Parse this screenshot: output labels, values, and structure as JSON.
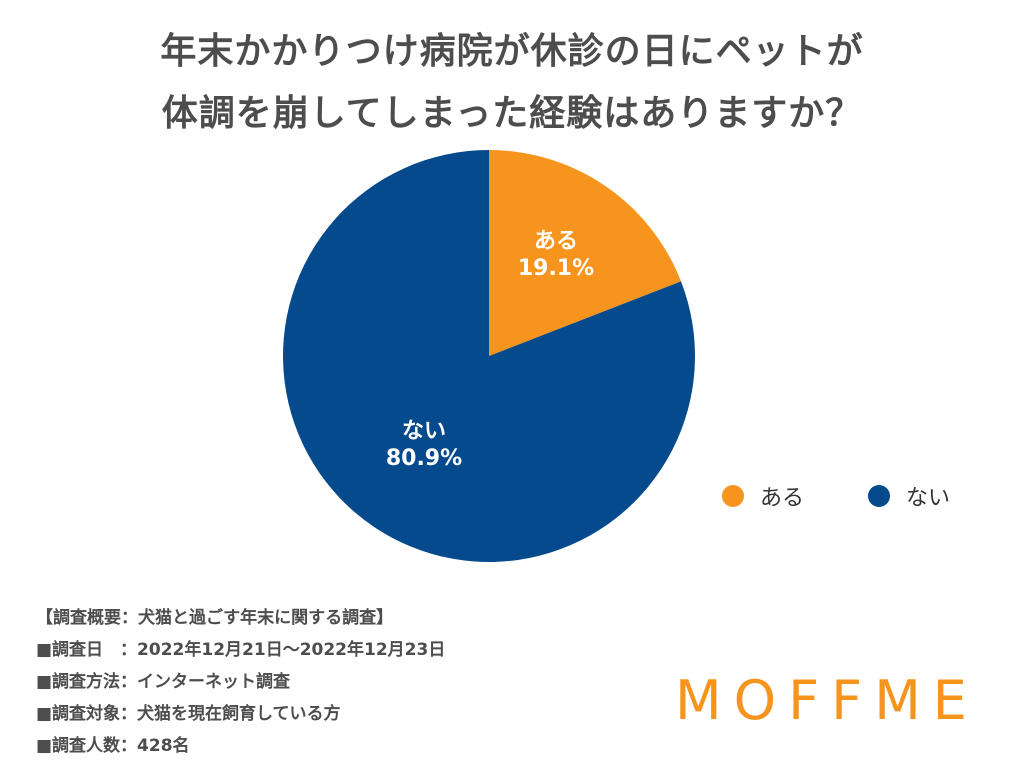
{
  "title": {
    "line1": "年末かかりつけ病院が休診の日にペットが",
    "line2": "体調を崩してしまった経験はありますか？"
  },
  "chart_data": {
    "type": "pie",
    "title": "年末かかりつけ病院が休診の日にペットが体調を崩してしまった経験はありますか？",
    "slices": [
      {
        "label": "ある",
        "value": 19.1,
        "display": "19.1%",
        "color": "#f7941d"
      },
      {
        "label": "ない",
        "value": 80.9,
        "display": "80.9%",
        "color": "#054a8c"
      }
    ],
    "legend_position": "right"
  },
  "legend": {
    "items": [
      {
        "label": "ある",
        "color": "#f7941d"
      },
      {
        "label": "ない",
        "color": "#054a8c"
      }
    ]
  },
  "notes": [
    "【調査概要：犬猫と過ごす年末に関する調査】",
    "■調査日　：2022年12月21日〜2022年12月23日",
    "■調査方法：インターネット調査",
    "■調査対象：犬猫を現在飼育している方",
    "■調査人数：428名"
  ],
  "brand": {
    "logo_text": "MOFFME",
    "color": "#f7941d"
  }
}
